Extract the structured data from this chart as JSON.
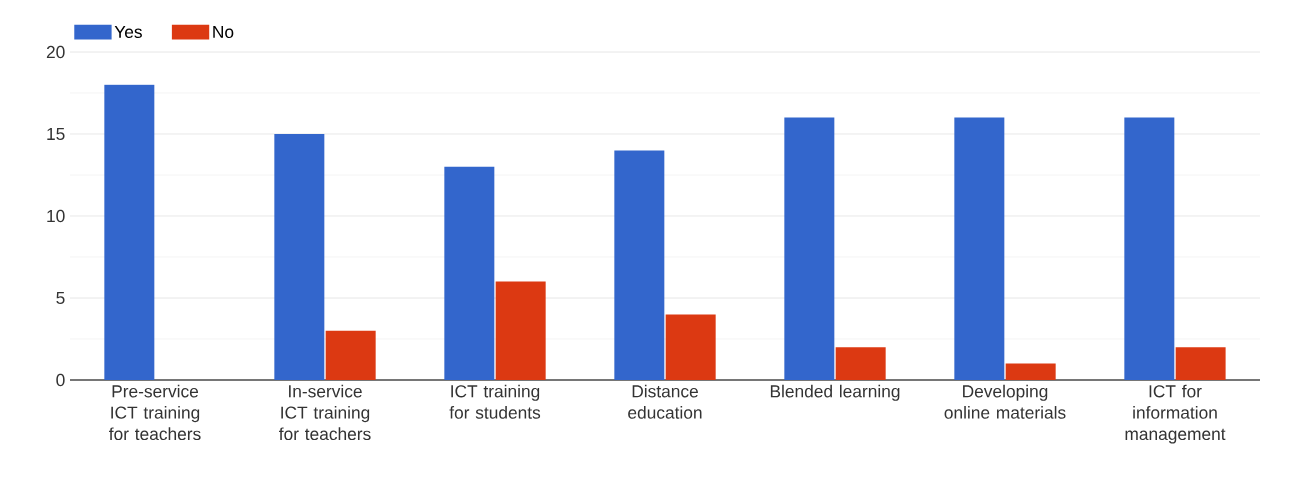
{
  "chart_data": {
    "type": "bar",
    "categories": [
      "Pre-service ICT training for teachers",
      "In-service ICT training for teachers",
      "ICT training for students",
      "Distance education",
      "Blended learning",
      "Developing online materials",
      "ICT for information management"
    ],
    "series": [
      {
        "name": "Yes",
        "color": "#3366cc",
        "values": [
          18,
          15,
          13,
          14,
          16,
          16,
          16
        ]
      },
      {
        "name": "No",
        "color": "#dc3912",
        "values": [
          0,
          3,
          6,
          4,
          2,
          1,
          2
        ]
      }
    ],
    "ylim": [
      0,
      20
    ],
    "yticks": [
      0,
      5,
      10,
      15,
      20
    ],
    "grid": "y",
    "legend": "top left"
  }
}
